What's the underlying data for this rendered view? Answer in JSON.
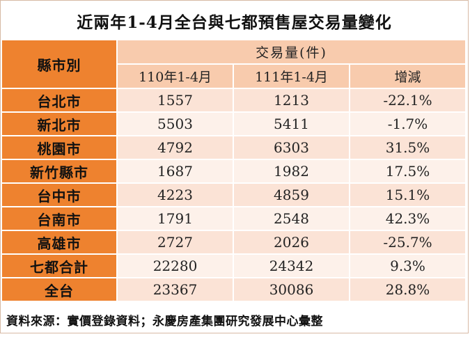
{
  "title": "近兩年1-4月全台與七都預售屋交易量變化",
  "chart_data": {
    "type": "table",
    "header": {
      "city_label": "縣市別",
      "group_label": "交易量(件)",
      "columns": [
        "110年1-4月",
        "111年1-4月",
        "增減"
      ]
    },
    "rows": [
      {
        "city": "台北市",
        "y110": "1557",
        "y111": "1213",
        "change": "-22.1%"
      },
      {
        "city": "新北市",
        "y110": "5503",
        "y111": "5411",
        "change": "-1.7%"
      },
      {
        "city": "桃園市",
        "y110": "4792",
        "y111": "6303",
        "change": "31.5%"
      },
      {
        "city": "新竹縣市",
        "y110": "1687",
        "y111": "1982",
        "change": "17.5%"
      },
      {
        "city": "台中市",
        "y110": "4223",
        "y111": "4859",
        "change": "15.1%"
      },
      {
        "city": "台南市",
        "y110": "1791",
        "y111": "2548",
        "change": "42.3%"
      },
      {
        "city": "高雄市",
        "y110": "2727",
        "y111": "2026",
        "change": "-25.7%"
      },
      {
        "city": "七都合計",
        "y110": "22280",
        "y111": "24342",
        "change": "9.3%"
      },
      {
        "city": "全台",
        "y110": "23367",
        "y111": "30086",
        "change": "28.8%"
      }
    ]
  },
  "source": "資料來源：實價登錄資料；永慶房產集團研究發展中心彙整",
  "colors": {
    "city_column": "#ee822f",
    "header": "#f8cbad",
    "row_dark": "#fbe3d6",
    "row_light": "#fdf1ea"
  }
}
